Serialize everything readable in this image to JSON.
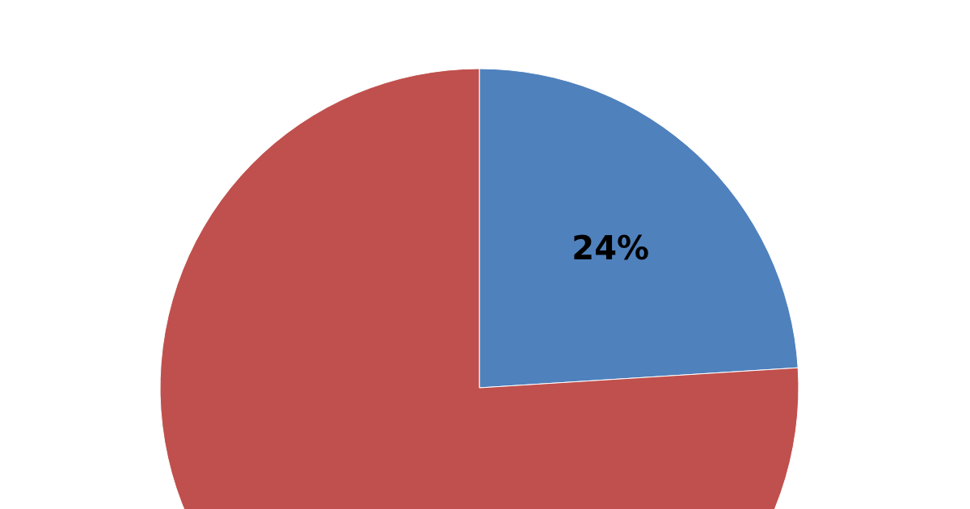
{
  "chart_data": {
    "type": "pie",
    "categories": [
      null,
      null
    ],
    "values": [
      24,
      76
    ],
    "colors": [
      "#4f81bd",
      "#c0504d"
    ],
    "value_labels": [
      "24%",
      null
    ],
    "legend": false
  }
}
